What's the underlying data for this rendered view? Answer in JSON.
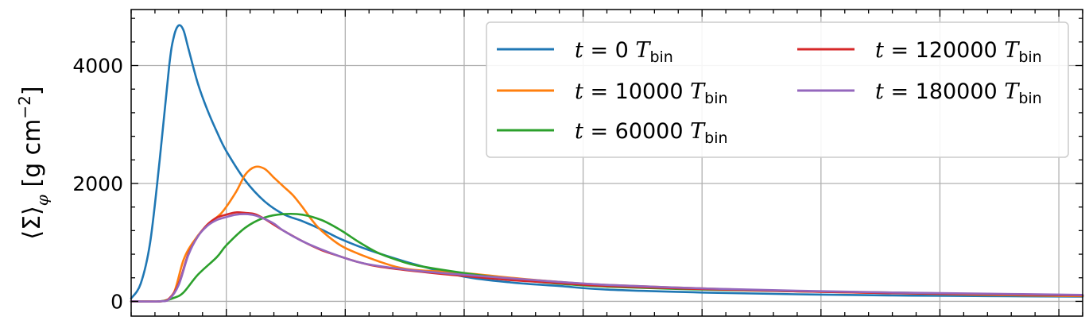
{
  "chart_data": {
    "type": "line",
    "xlabel": "",
    "ylabel": "⟨Σ⟩_φ [g cm⁻²]",
    "ylabel_parts": {
      "quantity": "⟨Σ⟩",
      "subscript": "φ",
      "unit_base": "g cm",
      "unit_exp": "−2"
    },
    "xlim": [
      0,
      1
    ],
    "ylim": [
      -250,
      4950
    ],
    "y_ticks": [
      0,
      2000,
      4000
    ],
    "y_tick_labels": [
      "0",
      "2000",
      "4000"
    ],
    "x_major_ticks": [
      0.1,
      0.225,
      0.35,
      0.475,
      0.6,
      0.725,
      0.85,
      0.975
    ],
    "grid": true,
    "legend": "top-right",
    "series": [
      {
        "name": "t = 0 T_bin",
        "label_main": "t = 0 ",
        "label_sym": "T",
        "label_sub": "bin",
        "color": "#1f77b4",
        "x": [
          0,
          0.01,
          0.02,
          0.03,
          0.04,
          0.045,
          0.05,
          0.055,
          0.06,
          0.07,
          0.08,
          0.09,
          0.1,
          0.12,
          0.14,
          0.16,
          0.18,
          0.2,
          0.22,
          0.25,
          0.3,
          0.35,
          0.4,
          0.45,
          0.5,
          0.6,
          0.7,
          0.8,
          0.9,
          1.0
        ],
        "y": [
          50,
          300,
          1000,
          2400,
          4000,
          4500,
          4680,
          4600,
          4300,
          3700,
          3250,
          2880,
          2550,
          2050,
          1700,
          1480,
          1360,
          1220,
          1060,
          870,
          620,
          420,
          320,
          260,
          200,
          150,
          120,
          100,
          90,
          80
        ]
      },
      {
        "name": "t = 10000 T_bin",
        "label_main": "t = 10000 ",
        "label_sym": "T",
        "label_sub": "bin",
        "color": "#ff7f0e",
        "x": [
          0,
          0.02,
          0.035,
          0.045,
          0.055,
          0.065,
          0.08,
          0.095,
          0.11,
          0.12,
          0.13,
          0.14,
          0.15,
          0.16,
          0.17,
          0.18,
          0.19,
          0.2,
          0.22,
          0.24,
          0.26,
          0.28,
          0.3,
          0.35,
          0.4,
          0.45,
          0.5,
          0.6,
          0.7,
          0.8,
          0.9,
          1.0
        ],
        "y": [
          0,
          0,
          10,
          150,
          700,
          1000,
          1300,
          1500,
          1850,
          2150,
          2280,
          2250,
          2100,
          1950,
          1800,
          1600,
          1380,
          1200,
          950,
          800,
          680,
          580,
          530,
          480,
          400,
          330,
          280,
          220,
          170,
          140,
          110,
          90
        ]
      },
      {
        "name": "t = 60000 T_bin",
        "label_main": "t = 60000 ",
        "label_sym": "T",
        "label_sub": "bin",
        "color": "#2ca02c",
        "x": [
          0,
          0.03,
          0.045,
          0.055,
          0.07,
          0.09,
          0.1,
          0.12,
          0.14,
          0.16,
          0.18,
          0.2,
          0.22,
          0.24,
          0.26,
          0.28,
          0.3,
          0.35,
          0.4,
          0.45,
          0.5,
          0.6,
          0.7,
          0.8,
          0.9,
          1.0
        ],
        "y": [
          0,
          0,
          60,
          150,
          450,
          750,
          950,
          1250,
          1420,
          1480,
          1470,
          1380,
          1210,
          1000,
          820,
          700,
          610,
          480,
          380,
          300,
          250,
          200,
          170,
          150,
          120,
          100
        ]
      },
      {
        "name": "t = 120000 T_bin",
        "label_main": "t = 120000 ",
        "label_sym": "T",
        "label_sub": "bin",
        "color": "#d62728",
        "x": [
          0,
          0.03,
          0.04,
          0.05,
          0.06,
          0.07,
          0.08,
          0.09,
          0.1,
          0.11,
          0.12,
          0.13,
          0.14,
          0.15,
          0.16,
          0.18,
          0.2,
          0.22,
          0.24,
          0.26,
          0.3,
          0.35,
          0.4,
          0.45,
          0.5,
          0.6,
          0.7,
          0.8,
          0.9,
          1.0
        ],
        "y": [
          0,
          0,
          50,
          300,
          800,
          1100,
          1300,
          1420,
          1470,
          1510,
          1500,
          1480,
          1400,
          1300,
          1200,
          1020,
          870,
          760,
          660,
          590,
          510,
          430,
          360,
          310,
          260,
          210,
          170,
          140,
          120,
          100
        ]
      },
      {
        "name": "t = 180000 T_bin",
        "label_main": "t = 180000 ",
        "label_sym": "T",
        "label_sub": "bin",
        "color": "#9467bd",
        "x": [
          0,
          0.03,
          0.04,
          0.05,
          0.06,
          0.07,
          0.08,
          0.09,
          0.1,
          0.11,
          0.12,
          0.13,
          0.14,
          0.15,
          0.16,
          0.18,
          0.2,
          0.22,
          0.24,
          0.26,
          0.3,
          0.35,
          0.4,
          0.45,
          0.5,
          0.6,
          0.7,
          0.8,
          0.9,
          1.0
        ],
        "y": [
          0,
          0,
          40,
          280,
          780,
          1100,
          1280,
          1380,
          1430,
          1470,
          1480,
          1460,
          1400,
          1320,
          1200,
          1020,
          880,
          760,
          660,
          600,
          520,
          450,
          390,
          330,
          280,
          220,
          180,
          150,
          130,
          110
        ]
      }
    ]
  }
}
